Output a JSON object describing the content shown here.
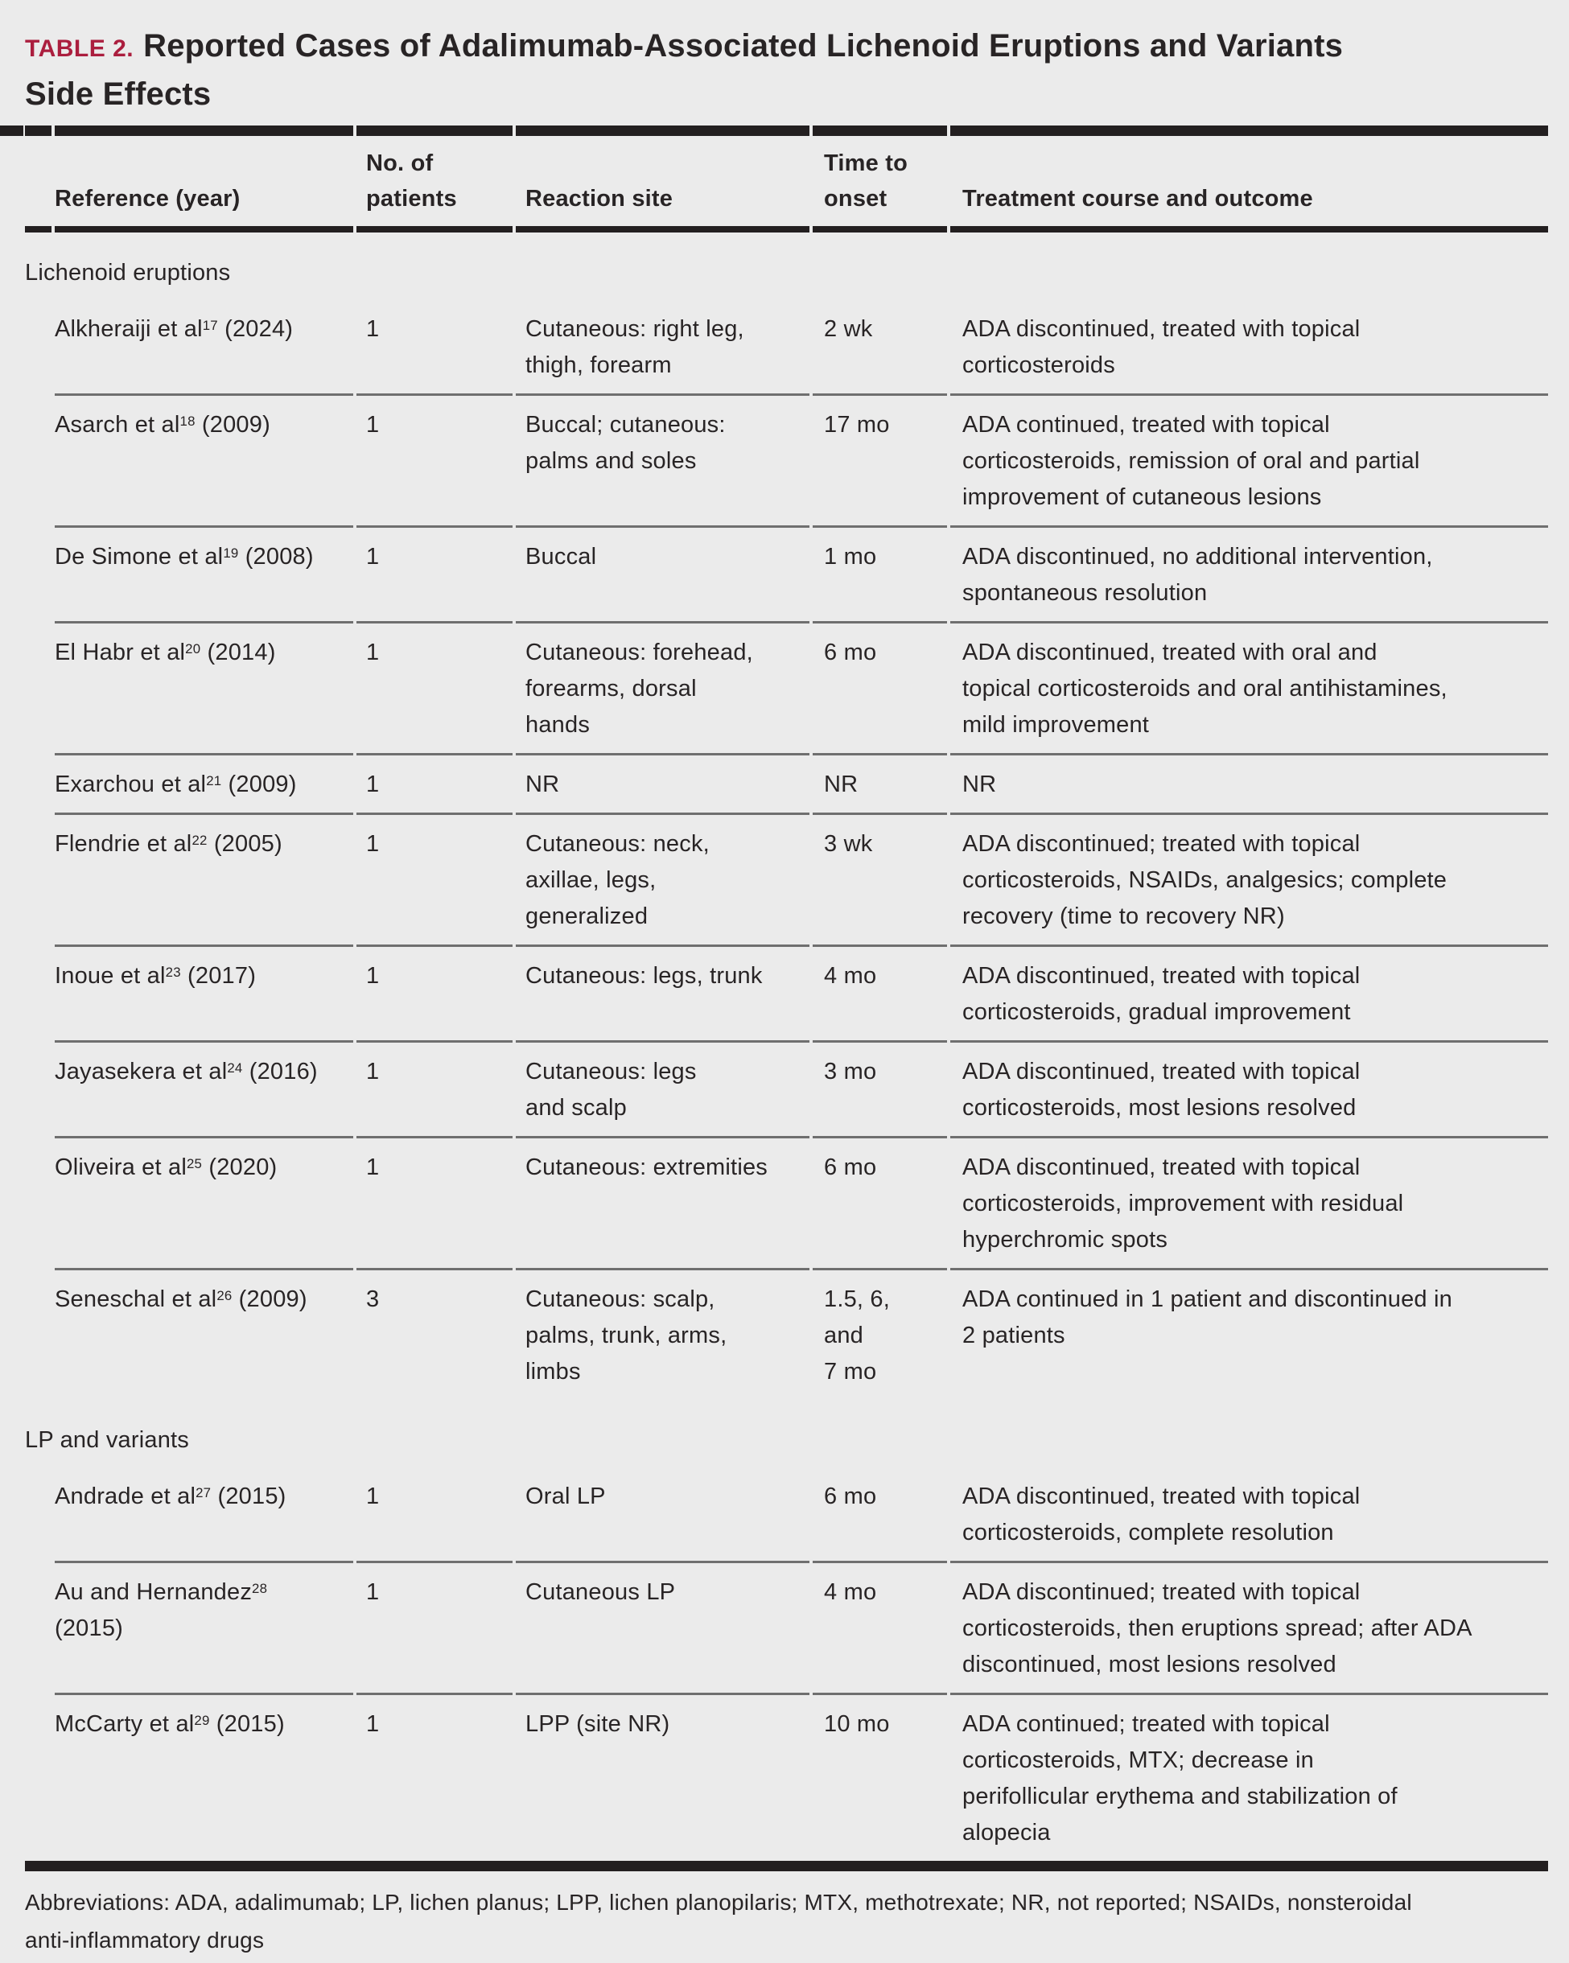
{
  "title": {
    "label": "TABLE 2.",
    "text": "Reported Cases of Adalimumab-Associated Lichenoid Eruptions and Variants\nSide Effects"
  },
  "colors": {
    "accent_red": "#ab1e3e",
    "text": "#282425",
    "background": "#ebebeb",
    "rule_dark": "#231f20",
    "rule_gray": "#6f6f6f"
  },
  "table": {
    "headers": {
      "reference": "Reference (year)",
      "patients": "No. of\npatients",
      "reaction": "Reaction site",
      "time": "Time to\nonset",
      "treatment": "Treatment course and outcome"
    },
    "sections": [
      {
        "label": "Lichenoid eruptions",
        "rows": [
          {
            "ref_pre": "Alkheraiji et al",
            "ref_sup": "17",
            "ref_post": " (2024)",
            "patients": "1",
            "reaction_site": "Cutaneous: right leg,\nthigh, forearm",
            "time_to_onset": "2 wk",
            "treatment": "ADA discontinued, treated with topical\ncorticosteroids"
          },
          {
            "ref_pre": "Asarch et al",
            "ref_sup": "18",
            "ref_post": " (2009)",
            "patients": "1",
            "reaction_site": "Buccal; cutaneous:\npalms and soles",
            "time_to_onset": "17 mo",
            "treatment": "ADA continued, treated with topical\ncorticosteroids, remission of oral and partial\nimprovement of cutaneous lesions"
          },
          {
            "ref_pre": "De Simone et al",
            "ref_sup": "19",
            "ref_post": " (2008)",
            "patients": "1",
            "reaction_site": "Buccal",
            "time_to_onset": "1 mo",
            "treatment": "ADA discontinued, no additional intervention,\nspontaneous resolution"
          },
          {
            "ref_pre": "El Habr et al",
            "ref_sup": "20",
            "ref_post": " (2014)",
            "patients": "1",
            "reaction_site": "Cutaneous: forehead,\nforearms, dorsal\nhands",
            "time_to_onset": "6 mo",
            "treatment": "ADA discontinued, treated with oral and\ntopical corticosteroids and oral antihistamines,\nmild improvement"
          },
          {
            "ref_pre": "Exarchou et al",
            "ref_sup": "21",
            "ref_post": " (2009)",
            "patients": "1",
            "reaction_site": "NR",
            "time_to_onset": "NR",
            "treatment": "NR"
          },
          {
            "ref_pre": "Flendrie et al",
            "ref_sup": "22",
            "ref_post": " (2005)",
            "patients": "1",
            "reaction_site": "Cutaneous: neck,\naxillae, legs,\ngeneralized",
            "time_to_onset": "3 wk",
            "treatment": "ADA discontinued; treated with topical\ncorticosteroids, NSAIDs, analgesics; complete\nrecovery (time to recovery NR)"
          },
          {
            "ref_pre": "Inoue et al",
            "ref_sup": "23",
            "ref_post": " (2017)",
            "patients": "1",
            "reaction_site": "Cutaneous: legs, trunk",
            "time_to_onset": "4 mo",
            "treatment": "ADA discontinued, treated with topical\ncorticosteroids, gradual improvement"
          },
          {
            "ref_pre": "Jayasekera et al",
            "ref_sup": "24",
            "ref_post": " (2016)",
            "patients": "1",
            "reaction_site": "Cutaneous: legs\nand scalp",
            "time_to_onset": "3 mo",
            "treatment": "ADA discontinued, treated with topical\ncorticosteroids, most lesions resolved"
          },
          {
            "ref_pre": "Oliveira et al",
            "ref_sup": "25",
            "ref_post": " (2020)",
            "patients": "1",
            "reaction_site": "Cutaneous: extremities",
            "time_to_onset": "6 mo",
            "treatment": "ADA discontinued, treated with topical\ncorticosteroids, improvement with residual\nhyperchromic spots"
          },
          {
            "ref_pre": "Seneschal et al",
            "ref_sup": "26",
            "ref_post": " (2009)",
            "patients": "3",
            "reaction_site": "Cutaneous: scalp,\npalms, trunk, arms,\nlimbs",
            "time_to_onset": "1.5, 6,\nand\n7 mo",
            "treatment": "ADA continued in 1 patient and discontinued in\n2 patients"
          }
        ]
      },
      {
        "label": "LP and variants",
        "rows": [
          {
            "ref_pre": "Andrade et al",
            "ref_sup": "27",
            "ref_post": " (2015)",
            "patients": "1",
            "reaction_site": "Oral LP",
            "time_to_onset": "6 mo",
            "treatment": "ADA discontinued, treated with topical\ncorticosteroids, complete resolution"
          },
          {
            "ref_pre": "Au and Hernandez",
            "ref_sup": "28",
            "ref_post": "\n(2015)",
            "patients": "1",
            "reaction_site": "Cutaneous LP",
            "time_to_onset": "4 mo",
            "treatment": "ADA discontinued; treated with topical\ncorticosteroids, then eruptions spread; after ADA\ndiscontinued, most lesions resolved"
          },
          {
            "ref_pre": "McCarty et al",
            "ref_sup": "29",
            "ref_post": " (2015)",
            "patients": "1",
            "reaction_site": "LPP (site NR)",
            "time_to_onset": "10 mo",
            "treatment": "ADA continued; treated with topical\ncorticosteroids, MTX; decrease in\nperifollicular erythema and stabilization of\nalopecia"
          }
        ]
      }
    ]
  },
  "abbreviations": "Abbreviations: ADA, adalimumab; LP, lichen planus; LPP, lichen planopilaris; MTX, methotrexate; NR, not reported; NSAIDs, nonsteroidal\nanti-inflammatory drugs"
}
